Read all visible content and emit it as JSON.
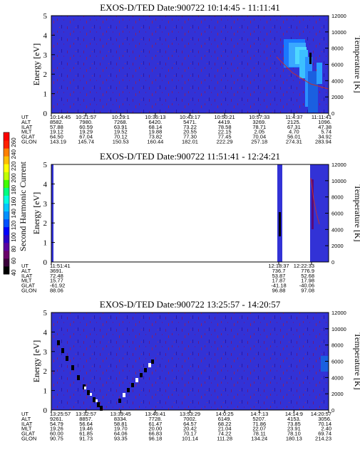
{
  "colorbar": {
    "label": "Second Harmonic Current",
    "ticks": [
      "40",
      "60",
      "80",
      "100",
      "120",
      "140",
      "160",
      "180",
      "200",
      "220",
      "240",
      "260"
    ],
    "colors": [
      "#000000",
      "#3a003a",
      "#6a006a",
      "#5a00a0",
      "#2a00c8",
      "#0000ff",
      "#0050ff",
      "#0090ff",
      "#00c8ff",
      "#00ffe0",
      "#00ff80",
      "#40ff00",
      "#c0ff00",
      "#ffff00",
      "#ffc000",
      "#ff8000",
      "#ff2000",
      "#ff0000"
    ]
  },
  "chart_data": [
    {
      "type": "heatmap",
      "title": "EXOS-D/TED   Date:900722  10:14:45 - 11:11:41",
      "ylabel": "Energy [eV]",
      "y2label": "Temperature [K]",
      "ylim": [
        0,
        5
      ],
      "y2lim": [
        0,
        12000
      ],
      "yticks": [
        "0",
        "1",
        "2",
        "3",
        "4",
        "5"
      ],
      "y2ticks": [
        "0",
        "2000",
        "4000",
        "6000",
        "8000",
        "10000",
        "12000"
      ],
      "background": "#3030d8",
      "row_labels": [
        "UT",
        "ALT",
        "ILAT",
        "MLT",
        "GLAT",
        "GLON"
      ],
      "columns": [
        [
          "10:14:45",
          "8582.",
          "57.88",
          "19.12",
          "64.50",
          "143.19"
        ],
        [
          "10:21:57",
          "7980.",
          "60.59",
          "19.29",
          "67.04",
          "145.74"
        ],
        [
          "10:29:1",
          "7268.",
          "63.91",
          "19.52",
          "70.12",
          "150.53"
        ],
        [
          "10:36:13",
          "6420.",
          "68.14",
          "19.88",
          "73.82",
          "160.44"
        ],
        [
          "10:43:17",
          "5471.",
          "73.22",
          "20.55",
          "77.30",
          "182.01"
        ],
        [
          "10:50:21",
          "4419.",
          "78.58",
          "22.15",
          "77.45",
          "222.29"
        ],
        [
          "10:57:33",
          "3269.",
          "78.71",
          "2.05",
          "70.04",
          "257.18"
        ],
        [
          "11:4:37",
          "2125.",
          "67.31",
          "4.70",
          "56.01",
          "274.31"
        ],
        [
          "11:11:41",
          "1096.",
          "47.38",
          "5.74",
          "34.92",
          "283.94"
        ]
      ],
      "right_column_index": 8
    },
    {
      "type": "heatmap",
      "title": "EXOS-D/TED   Date:900722  11:51:41 - 12:24:21",
      "ylabel": "Energy [eV]",
      "y2label": "Temperature [K]",
      "ylim": [
        0,
        5
      ],
      "y2lim": [
        0,
        12000
      ],
      "yticks": [
        "0",
        "1",
        "2",
        "3",
        "4",
        "5"
      ],
      "y2ticks": [
        "0",
        "2000",
        "4000",
        "6000",
        "8000",
        "10000",
        "12000"
      ],
      "background": "#ffffff",
      "row_labels": [
        "UT",
        "ALT",
        "ILAT",
        "MLT",
        "GLAT",
        "GLON"
      ],
      "columns": [
        [
          "11:51:41",
          "3691.",
          "72.48",
          "15.77",
          "-61.92",
          "88.06"
        ],
        [
          "12:18:37",
          "736.7",
          "53.87",
          "17.87",
          "-41.18",
          "96.88"
        ],
        [
          "12:22:33",
          "776.9",
          "52.68",
          "17.98",
          "-40.06",
          "97.08"
        ]
      ],
      "right_column_index": 2
    },
    {
      "type": "heatmap",
      "title": "EXOS-D/TED   Date:900722  13:25:57 - 14:20:57",
      "ylabel": "Energy [eV]",
      "y2label": "Temperature [K]",
      "ylim": [
        0,
        5
      ],
      "y2lim": [
        0,
        12000
      ],
      "yticks": [
        "0",
        "1",
        "2",
        "3",
        "4",
        "5"
      ],
      "y2ticks": [
        "0",
        "2000",
        "4000",
        "6000",
        "8000",
        "10000",
        "12000"
      ],
      "background": "#3030d8",
      "row_labels": [
        "UT",
        "ALT",
        "ILAT",
        "MLT",
        "GLAT",
        "GLON"
      ],
      "columns": [
        [
          "13:25:57",
          "9261.",
          "54.79",
          "19.26",
          "60.00",
          "90.75"
        ],
        [
          "13:32:57",
          "8857.",
          "56.64",
          "19.46",
          "61.85",
          "91.73"
        ],
        [
          "13:39:45",
          "8334.",
          "58.81",
          "19.70",
          "64.06",
          "93.35"
        ],
        [
          "13:46:41",
          "7728.",
          "61.47",
          "20.00",
          "66.83",
          "96.18"
        ],
        [
          "13:53:29",
          "7002.",
          "64.57",
          "20.42",
          "70.17",
          "101.14"
        ],
        [
          "14:0:25",
          "6149.",
          "68.22",
          "21.04",
          "74.22",
          "111.28"
        ],
        [
          "14:7:13",
          "5207.",
          "71.86",
          "22.07",
          "78.11",
          "134.24"
        ],
        [
          "14:14:9",
          "4153.",
          "73.85",
          "23.91",
          "78.10",
          "180.13"
        ],
        [
          "14:20:57",
          "3056.",
          "70.14",
          "2.40",
          "69.74",
          "214.23"
        ]
      ],
      "right_column_index": 8
    }
  ]
}
